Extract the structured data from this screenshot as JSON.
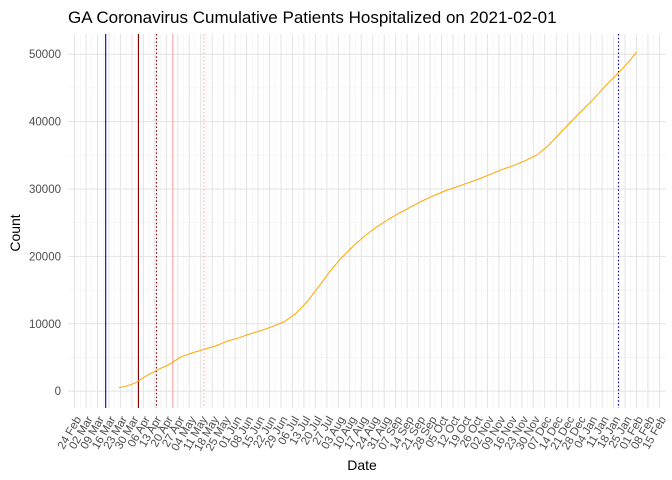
{
  "chart_data": {
    "type": "line",
    "title": "GA Coronavirus Cumulative Patients Hospitalized on 2021-02-01",
    "xlabel": "Date",
    "ylabel": "Count",
    "xlim": [
      "2020-02-20",
      "2021-02-19"
    ],
    "ylim": [
      -2500,
      53000
    ],
    "y_ticks": [
      0,
      10000,
      20000,
      30000,
      40000,
      50000
    ],
    "x_tick_dates": [
      "2020-02-24",
      "2020-03-02",
      "2020-03-09",
      "2020-03-16",
      "2020-03-23",
      "2020-03-30",
      "2020-04-06",
      "2020-04-13",
      "2020-04-20",
      "2020-04-27",
      "2020-05-04",
      "2020-05-11",
      "2020-05-18",
      "2020-05-25",
      "2020-06-01",
      "2020-06-08",
      "2020-06-15",
      "2020-06-22",
      "2020-06-29",
      "2020-07-06",
      "2020-07-13",
      "2020-07-20",
      "2020-07-27",
      "2020-08-03",
      "2020-08-10",
      "2020-08-17",
      "2020-08-24",
      "2020-08-31",
      "2020-09-07",
      "2020-09-14",
      "2020-09-21",
      "2020-09-28",
      "2020-10-05",
      "2020-10-12",
      "2020-10-19",
      "2020-10-26",
      "2020-11-02",
      "2020-11-09",
      "2020-11-16",
      "2020-11-23",
      "2020-11-30",
      "2020-12-07",
      "2020-12-14",
      "2020-12-21",
      "2020-12-28",
      "2021-01-04",
      "2021-01-11",
      "2021-01-18",
      "2021-01-25",
      "2021-02-01",
      "2021-02-08",
      "2021-02-15"
    ],
    "x_tick_labels": [
      "24 Feb",
      "02 Mar",
      "09 Mar",
      "16 Mar",
      "23 Mar",
      "30 Mar",
      "06 Apr",
      "13 Apr",
      "20 Apr",
      "27 Apr",
      "04 May",
      "11 May",
      "18 May",
      "25 May",
      "01 Jun",
      "08 Jun",
      "15 Jun",
      "22 Jun",
      "29 Jun",
      "06 Jul",
      "13 Jul",
      "20 Jul",
      "27 Jul",
      "03 Aug",
      "10 Aug",
      "17 Aug",
      "24 Aug",
      "31 Aug",
      "07 Sep",
      "14 Sep",
      "21 Sep",
      "28 Sep",
      "05 Oct",
      "12 Oct",
      "19 Oct",
      "26 Oct",
      "02 Nov",
      "09 Nov",
      "16 Nov",
      "23 Nov",
      "30 Nov",
      "07 Dec",
      "14 Dec",
      "21 Dec",
      "28 Dec",
      "04 Jan",
      "11 Jan",
      "18 Jan",
      "25 Jan",
      "01 Feb",
      "08 Feb",
      "15 Feb"
    ],
    "grid": true,
    "series": [
      {
        "color": "#FFA500",
        "points": [
          {
            "x": "2020-03-22",
            "y": 500
          },
          {
            "x": "2020-03-26",
            "y": 700
          },
          {
            "x": "2020-04-01",
            "y": 1200
          },
          {
            "x": "2020-04-08",
            "y": 2300
          },
          {
            "x": "2020-04-15",
            "y": 3200
          },
          {
            "x": "2020-04-22",
            "y": 4000
          },
          {
            "x": "2020-04-29",
            "y": 5100
          },
          {
            "x": "2020-05-06",
            "y": 5700
          },
          {
            "x": "2020-05-13",
            "y": 6200
          },
          {
            "x": "2020-05-20",
            "y": 6700
          },
          {
            "x": "2020-05-27",
            "y": 7400
          },
          {
            "x": "2020-06-03",
            "y": 7900
          },
          {
            "x": "2020-06-10",
            "y": 8500
          },
          {
            "x": "2020-06-17",
            "y": 9000
          },
          {
            "x": "2020-06-24",
            "y": 9600
          },
          {
            "x": "2020-07-01",
            "y": 10300
          },
          {
            "x": "2020-07-08",
            "y": 11500
          },
          {
            "x": "2020-07-15",
            "y": 13300
          },
          {
            "x": "2020-07-22",
            "y": 15500
          },
          {
            "x": "2020-07-29",
            "y": 17800
          },
          {
            "x": "2020-08-05",
            "y": 19800
          },
          {
            "x": "2020-08-12",
            "y": 21500
          },
          {
            "x": "2020-08-19",
            "y": 23000
          },
          {
            "x": "2020-08-26",
            "y": 24300
          },
          {
            "x": "2020-09-02",
            "y": 25400
          },
          {
            "x": "2020-09-09",
            "y": 26400
          },
          {
            "x": "2020-09-16",
            "y": 27300
          },
          {
            "x": "2020-09-23",
            "y": 28200
          },
          {
            "x": "2020-09-30",
            "y": 29000
          },
          {
            "x": "2020-10-07",
            "y": 29700
          },
          {
            "x": "2020-10-14",
            "y": 30300
          },
          {
            "x": "2020-10-21",
            "y": 30900
          },
          {
            "x": "2020-10-28",
            "y": 31500
          },
          {
            "x": "2020-11-04",
            "y": 32200
          },
          {
            "x": "2020-11-11",
            "y": 32900
          },
          {
            "x": "2020-11-18",
            "y": 33500
          },
          {
            "x": "2020-11-25",
            "y": 34200
          },
          {
            "x": "2020-12-02",
            "y": 35000
          },
          {
            "x": "2020-12-09",
            "y": 36400
          },
          {
            "x": "2020-12-16",
            "y": 38200
          },
          {
            "x": "2020-12-23",
            "y": 40000
          },
          {
            "x": "2020-12-30",
            "y": 41700
          },
          {
            "x": "2021-01-06",
            "y": 43400
          },
          {
            "x": "2021-01-13",
            "y": 45300
          },
          {
            "x": "2021-01-20",
            "y": 47000
          },
          {
            "x": "2021-01-27",
            "y": 48800
          },
          {
            "x": "2021-02-01",
            "y": 50300
          }
        ]
      }
    ],
    "reference_lines": [
      {
        "x": "2020-03-14",
        "color": "#0000CD",
        "style": "solid"
      },
      {
        "x": "2020-04-03",
        "color": "#8B0000",
        "style": "solid"
      },
      {
        "x": "2020-04-14",
        "color": "#8B0000",
        "style": "dotted"
      },
      {
        "x": "2020-04-24",
        "color": "#F4A6A6",
        "style": "solid"
      },
      {
        "x": "2020-05-13",
        "color": "#F4A6A6",
        "style": "dotted"
      },
      {
        "x": "2021-01-21",
        "color": "#00008B",
        "style": "dotted"
      }
    ]
  }
}
